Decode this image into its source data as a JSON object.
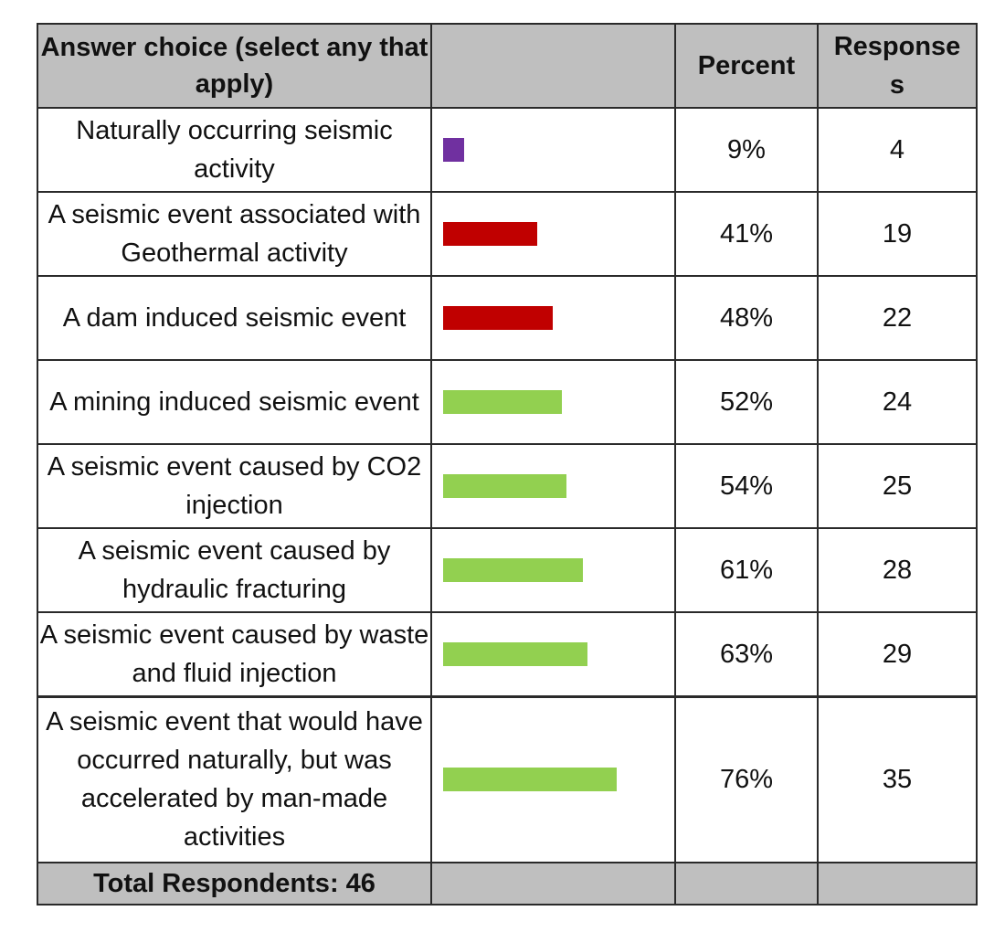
{
  "headers": {
    "choice": "Answer choice (select any that apply)",
    "bar": "",
    "percent": "Percent",
    "responses": "Response s"
  },
  "chart_data": {
    "type": "table",
    "columns": [
      "Answer choice (select any that apply)",
      "",
      "Percent",
      "Response s"
    ],
    "rows": [
      {
        "choice": "Naturally occurring seismic activity",
        "percent_label": "9%",
        "percent": 9,
        "responses": "4",
        "color": "#7030a0"
      },
      {
        "choice": "A seismic event associated with Geothermal activity",
        "percent_label": "41%",
        "percent": 41,
        "responses": "19",
        "color": "#c00000"
      },
      {
        "choice": "A dam induced seismic event",
        "percent_label": "48%",
        "percent": 48,
        "responses": "22",
        "color": "#c00000"
      },
      {
        "choice": "A mining induced seismic event",
        "percent_label": "52%",
        "percent": 52,
        "responses": "24",
        "color": "#92d050"
      },
      {
        "choice": "A seismic event caused by CO2 injection",
        "percent_label": "54%",
        "percent": 54,
        "responses": "25",
        "color": "#92d050"
      },
      {
        "choice": "A seismic event caused by hydraulic fracturing",
        "percent_label": "61%",
        "percent": 61,
        "responses": "28",
        "color": "#92d050"
      },
      {
        "choice": "A seismic event caused by waste and fluid injection",
        "percent_label": "63%",
        "percent": 63,
        "responses": "29",
        "color": "#92d050"
      },
      {
        "choice": "A seismic event that would have occurred naturally, but was accelerated by man-made activities",
        "percent_label": "76%",
        "percent": 76,
        "responses": "35",
        "color": "#92d050"
      }
    ],
    "total_label": "Total Respondents: 46",
    "header_fill": "#bfbfbf"
  }
}
